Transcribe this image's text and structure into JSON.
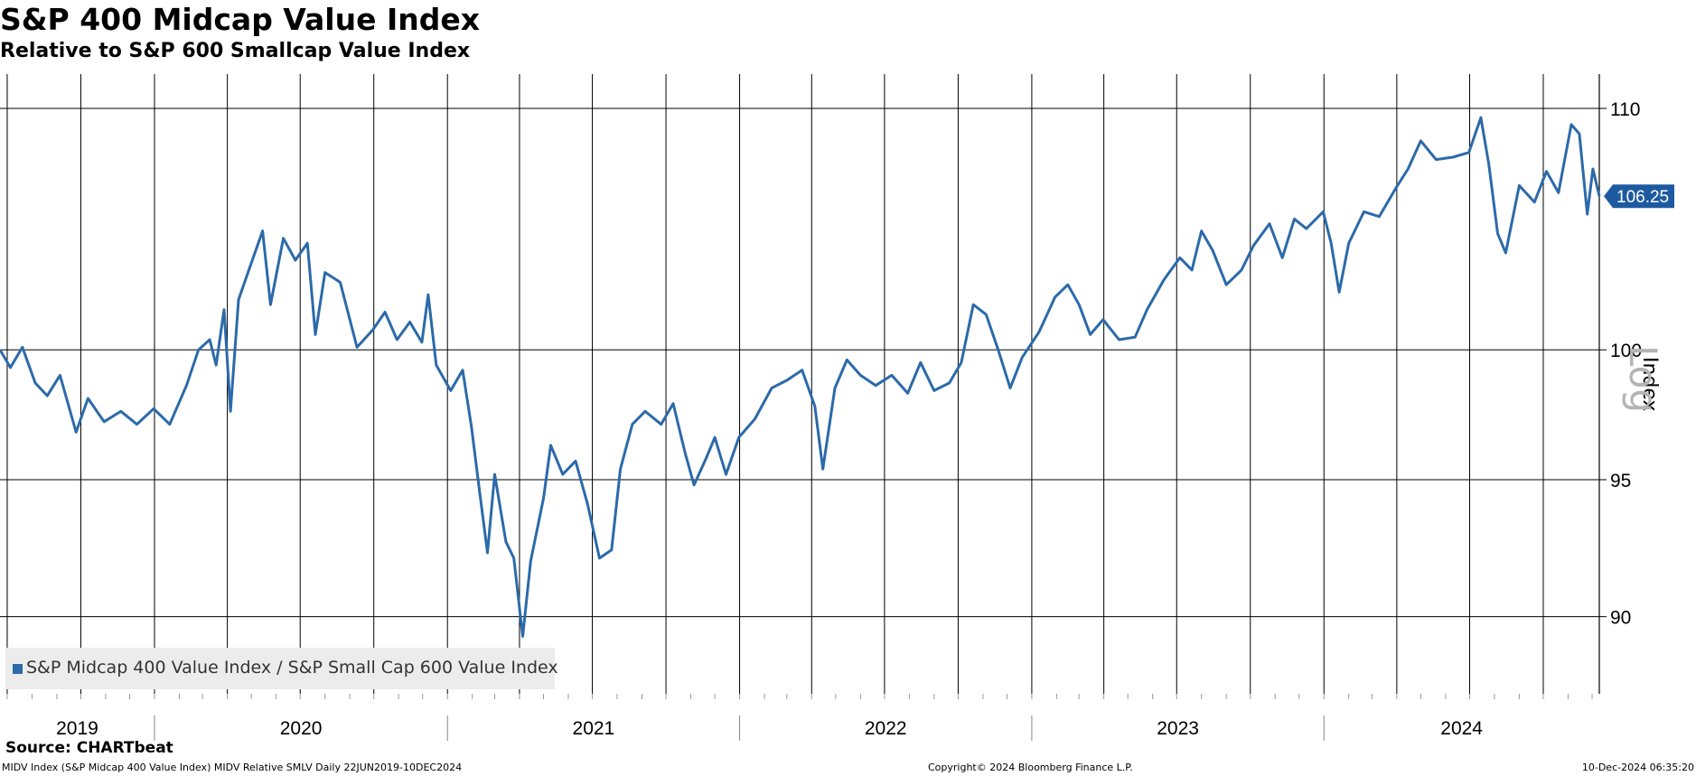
{
  "title": "S&P 400 Midcap Value Index",
  "subtitle": "Relative to S&P 600 Smallcap Value Index",
  "source": "Source: CHARTbeat",
  "footer": {
    "left": "MIDV Index (S&P Midcap 400 Value Index) MIDV Relative SMLV  Daily 22JUN2019-10DEC2024",
    "center": "Copyright© 2024 Bloomberg Finance L.P.",
    "right": "10-Dec-2024 06:35:20"
  },
  "y_axis_label": "Index",
  "scale_tag": "Log",
  "legend_label": "S&P Midcap 400 Value Index / S&P Small Cap 600 Value Index",
  "colors": {
    "series": "#2c6aa9",
    "last_value_tag": "#1e5aa0",
    "grid": "#000000"
  },
  "chart_data": {
    "type": "line",
    "title": "S&P 400 Midcap Value Index",
    "subtitle": "Relative to S&P 600 Smallcap Value Index",
    "ylabel": "Index",
    "yscale": "log",
    "ylim": [
      87.3,
      111.5
    ],
    "yticks": [
      90,
      95,
      100,
      110
    ],
    "xlim": [
      "2019-06-22",
      "2024-12-10"
    ],
    "xtick_labels": [
      "2019",
      "2020",
      "2021",
      "2022",
      "2023",
      "2024"
    ],
    "grid": true,
    "legend_position": "bottom-left",
    "last_value": "106.25",
    "series": [
      {
        "name": "S&P Midcap 400 Value Index / S&P Small Cap 600 Value Index",
        "points": [
          [
            "2019-06-22",
            100.0
          ],
          [
            "2019-07-05",
            99.3
          ],
          [
            "2019-07-20",
            100.1
          ],
          [
            "2019-08-05",
            98.7
          ],
          [
            "2019-08-20",
            98.2
          ],
          [
            "2019-09-05",
            99.0
          ],
          [
            "2019-09-25",
            96.8
          ],
          [
            "2019-10-10",
            98.1
          ],
          [
            "2019-10-30",
            97.2
          ],
          [
            "2019-11-20",
            97.6
          ],
          [
            "2019-12-10",
            97.1
          ],
          [
            "2019-12-31",
            97.7
          ],
          [
            "2020-01-20",
            97.1
          ],
          [
            "2020-02-10",
            98.6
          ],
          [
            "2020-02-25",
            100.0
          ],
          [
            "2020-03-10",
            100.4
          ],
          [
            "2020-03-18",
            99.4
          ],
          [
            "2020-03-28",
            101.6
          ],
          [
            "2020-04-05",
            97.6
          ],
          [
            "2020-04-15",
            102.0
          ],
          [
            "2020-04-30",
            103.4
          ],
          [
            "2020-05-15",
            104.8
          ],
          [
            "2020-05-25",
            101.8
          ],
          [
            "2020-06-10",
            104.5
          ],
          [
            "2020-06-25",
            103.6
          ],
          [
            "2020-07-10",
            104.3
          ],
          [
            "2020-07-20",
            100.6
          ],
          [
            "2020-08-01",
            103.1
          ],
          [
            "2020-08-20",
            102.7
          ],
          [
            "2020-09-10",
            100.1
          ],
          [
            "2020-09-30",
            100.8
          ],
          [
            "2020-10-15",
            101.5
          ],
          [
            "2020-10-30",
            100.4
          ],
          [
            "2020-11-15",
            101.1
          ],
          [
            "2020-11-30",
            100.3
          ],
          [
            "2020-12-08",
            102.2
          ],
          [
            "2020-12-18",
            99.4
          ],
          [
            "2021-01-05",
            98.4
          ],
          [
            "2021-01-20",
            99.2
          ],
          [
            "2021-01-31",
            97.0
          ],
          [
            "2021-02-10",
            94.6
          ],
          [
            "2021-02-20",
            92.3
          ],
          [
            "2021-03-01",
            95.2
          ],
          [
            "2021-03-15",
            92.7
          ],
          [
            "2021-03-25",
            92.1
          ],
          [
            "2021-04-05",
            89.3
          ],
          [
            "2021-04-15",
            92.0
          ],
          [
            "2021-05-01",
            94.3
          ],
          [
            "2021-05-10",
            96.3
          ],
          [
            "2021-05-25",
            95.2
          ],
          [
            "2021-06-10",
            95.7
          ],
          [
            "2021-06-25",
            94.1
          ],
          [
            "2021-07-10",
            92.1
          ],
          [
            "2021-07-25",
            92.4
          ],
          [
            "2021-08-05",
            95.4
          ],
          [
            "2021-08-20",
            97.1
          ],
          [
            "2021-09-05",
            97.6
          ],
          [
            "2021-09-25",
            97.1
          ],
          [
            "2021-10-10",
            97.9
          ],
          [
            "2021-10-25",
            96.0
          ],
          [
            "2021-11-05",
            94.8
          ],
          [
            "2021-11-20",
            95.8
          ],
          [
            "2021-12-01",
            96.6
          ],
          [
            "2021-12-15",
            95.2
          ],
          [
            "2021-12-31",
            96.6
          ],
          [
            "2022-01-20",
            97.3
          ],
          [
            "2022-02-10",
            98.5
          ],
          [
            "2022-03-01",
            98.8
          ],
          [
            "2022-03-20",
            99.2
          ],
          [
            "2022-04-05",
            97.8
          ],
          [
            "2022-04-15",
            95.4
          ],
          [
            "2022-04-30",
            98.5
          ],
          [
            "2022-05-15",
            99.6
          ],
          [
            "2022-06-01",
            99.0
          ],
          [
            "2022-06-20",
            98.6
          ],
          [
            "2022-07-10",
            99.0
          ],
          [
            "2022-07-30",
            98.3
          ],
          [
            "2022-08-15",
            99.5
          ],
          [
            "2022-09-01",
            98.4
          ],
          [
            "2022-09-20",
            98.7
          ],
          [
            "2022-10-05",
            99.5
          ],
          [
            "2022-10-20",
            101.8
          ],
          [
            "2022-11-05",
            101.4
          ],
          [
            "2022-11-20",
            100.0
          ],
          [
            "2022-12-05",
            98.5
          ],
          [
            "2022-12-20",
            99.7
          ],
          [
            "2023-01-10",
            100.7
          ],
          [
            "2023-01-30",
            102.1
          ],
          [
            "2023-02-15",
            102.6
          ],
          [
            "2023-03-01",
            101.8
          ],
          [
            "2023-03-15",
            100.6
          ],
          [
            "2023-03-31",
            101.2
          ],
          [
            "2023-04-20",
            100.4
          ],
          [
            "2023-05-10",
            100.5
          ],
          [
            "2023-05-25",
            101.6
          ],
          [
            "2023-06-15",
            102.8
          ],
          [
            "2023-07-05",
            103.7
          ],
          [
            "2023-07-20",
            103.2
          ],
          [
            "2023-08-01",
            104.8
          ],
          [
            "2023-08-15",
            104.0
          ],
          [
            "2023-09-01",
            102.6
          ],
          [
            "2023-09-20",
            103.2
          ],
          [
            "2023-10-05",
            104.2
          ],
          [
            "2023-10-25",
            105.1
          ],
          [
            "2023-11-10",
            103.7
          ],
          [
            "2023-11-25",
            105.3
          ],
          [
            "2023-12-10",
            104.9
          ],
          [
            "2023-12-31",
            105.6
          ],
          [
            "2024-01-10",
            104.3
          ],
          [
            "2024-01-20",
            102.3
          ],
          [
            "2024-02-01",
            104.3
          ],
          [
            "2024-02-20",
            105.6
          ],
          [
            "2024-03-10",
            105.4
          ],
          [
            "2024-03-31",
            106.6
          ],
          [
            "2024-04-15",
            107.4
          ],
          [
            "2024-05-01",
            108.6
          ],
          [
            "2024-05-20",
            107.8
          ],
          [
            "2024-06-10",
            107.9
          ],
          [
            "2024-06-30",
            108.1
          ],
          [
            "2024-07-15",
            109.6
          ],
          [
            "2024-07-25",
            107.6
          ],
          [
            "2024-08-05",
            104.7
          ],
          [
            "2024-08-15",
            103.9
          ],
          [
            "2024-09-01",
            106.7
          ],
          [
            "2024-09-20",
            106.0
          ],
          [
            "2024-10-05",
            107.3
          ],
          [
            "2024-10-20",
            106.4
          ],
          [
            "2024-11-05",
            109.3
          ],
          [
            "2024-11-15",
            108.9
          ],
          [
            "2024-11-25",
            105.5
          ],
          [
            "2024-12-02",
            107.4
          ],
          [
            "2024-12-10",
            106.25
          ]
        ]
      }
    ]
  }
}
